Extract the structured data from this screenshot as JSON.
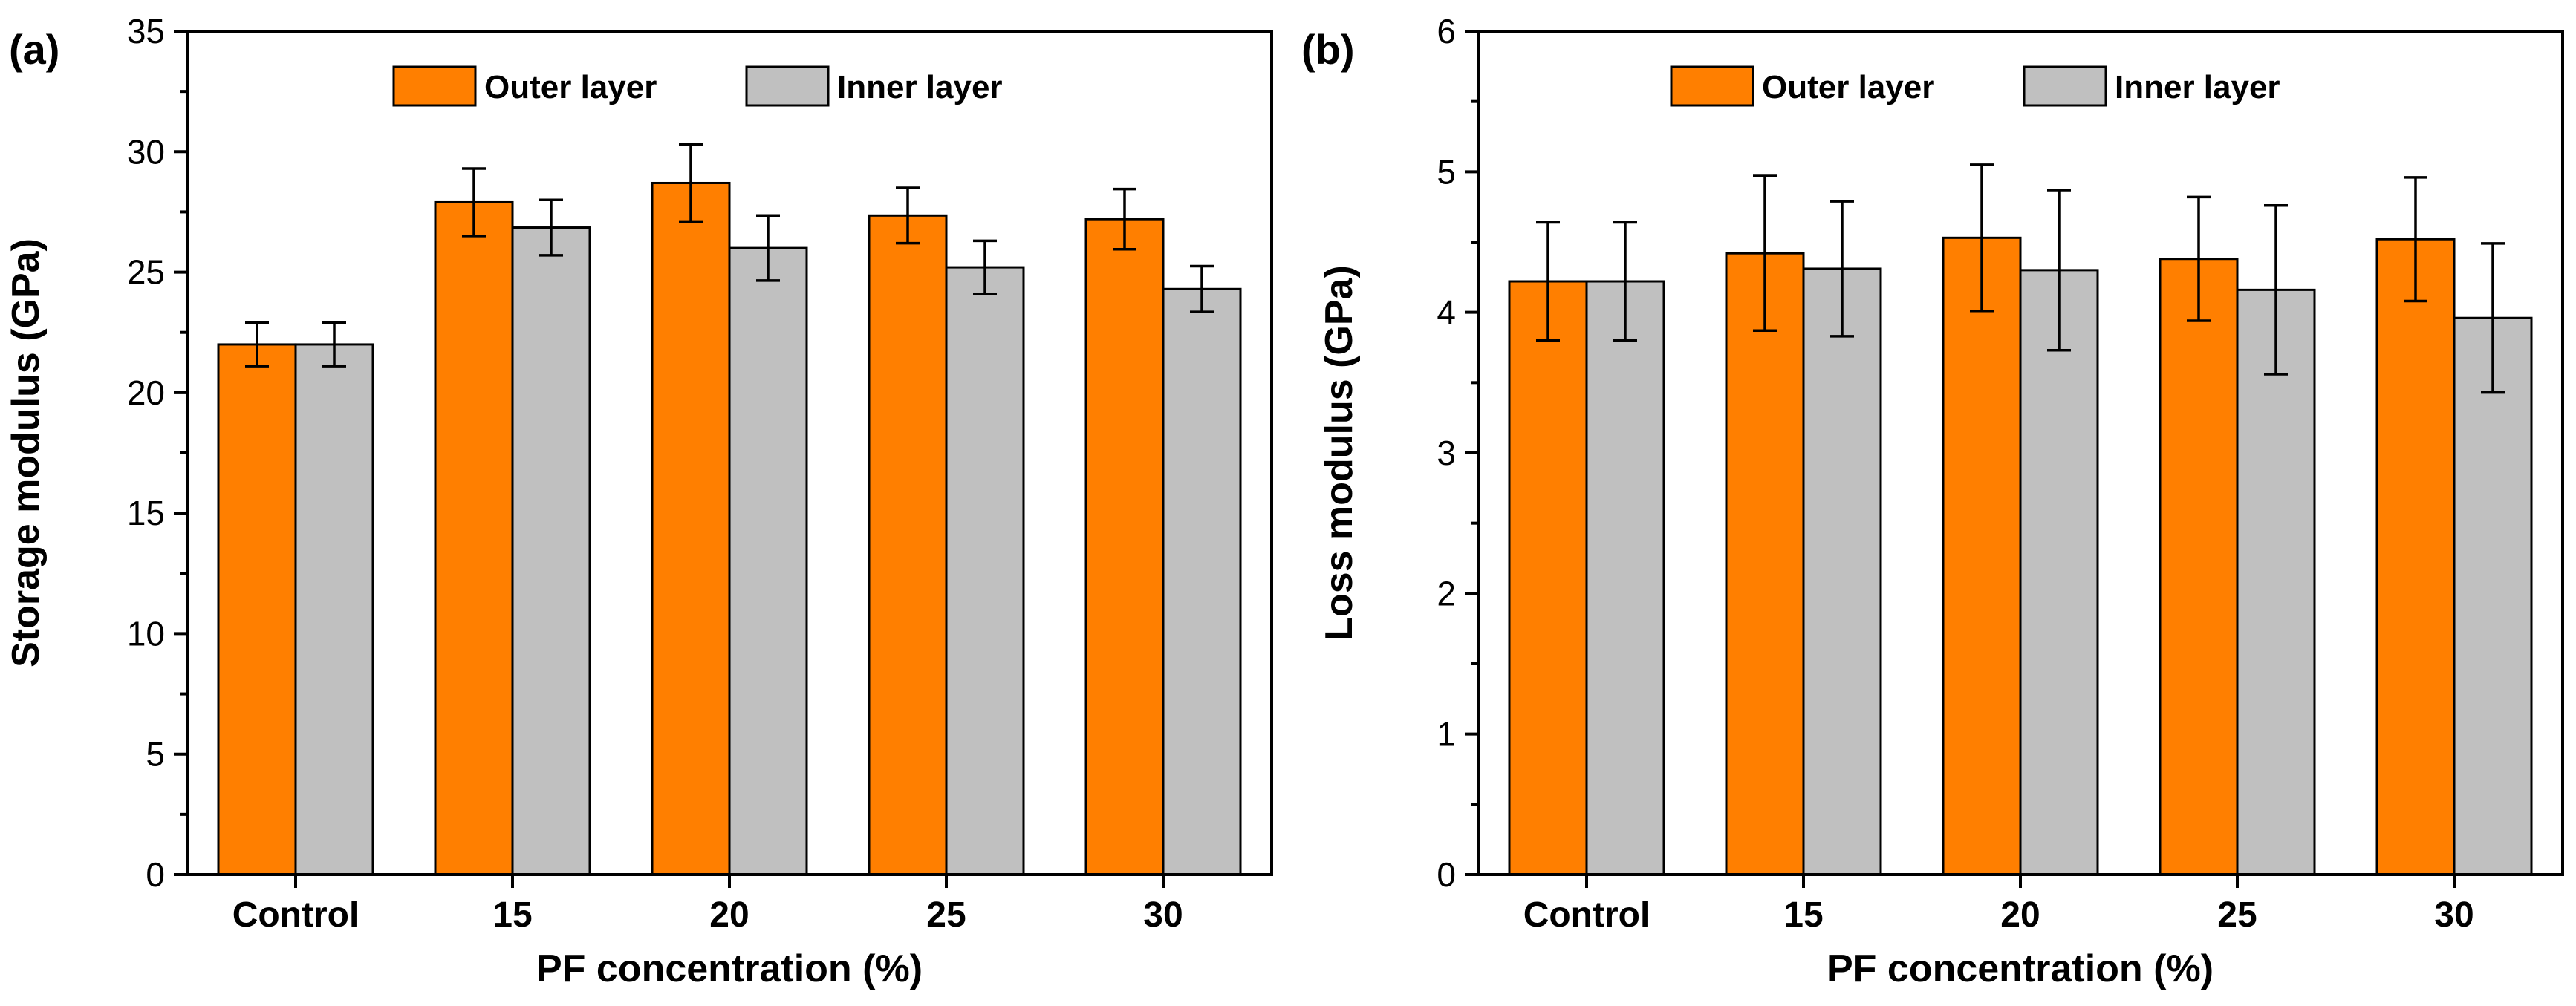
{
  "chart_data": [
    {
      "panel_label": "(a)",
      "type": "bar",
      "title": "",
      "xlabel": "PF concentration (%)",
      "ylabel": "Storage modulus (GPa)",
      "ylim": [
        0,
        35
      ],
      "yticks": [
        0,
        5,
        10,
        15,
        20,
        25,
        30,
        35
      ],
      "categories": [
        "Control",
        "15",
        "20",
        "25",
        "30"
      ],
      "legend_position": "top-center",
      "series": [
        {
          "name": "Outer layer",
          "color": "#FF7F00",
          "values": [
            22.0,
            27.9,
            28.7,
            27.35,
            27.2
          ],
          "errors": [
            0.9,
            1.4,
            1.6,
            1.15,
            1.25
          ]
        },
        {
          "name": "Inner layer",
          "color": "#C0C0C0",
          "values": [
            22.0,
            26.85,
            26.0,
            25.2,
            24.3
          ],
          "errors": [
            0.9,
            1.15,
            1.35,
            1.1,
            0.95
          ]
        }
      ]
    },
    {
      "panel_label": "(b)",
      "type": "bar",
      "title": "",
      "xlabel": "PF concentration (%)",
      "ylabel": "Loss modulus (GPa)",
      "ylim": [
        0,
        6
      ],
      "yticks": [
        0,
        1,
        2,
        3,
        4,
        5,
        6
      ],
      "categories": [
        "Control",
        "15",
        "20",
        "25",
        "30"
      ],
      "legend_position": "top-center",
      "series": [
        {
          "name": "Outer layer",
          "color": "#FF7F00",
          "values": [
            4.22,
            4.42,
            4.53,
            4.38,
            4.52
          ],
          "errors": [
            0.42,
            0.55,
            0.52,
            0.44,
            0.44
          ]
        },
        {
          "name": "Inner layer",
          "color": "#C0C0C0",
          "values": [
            4.22,
            4.31,
            4.3,
            4.16,
            3.96
          ],
          "errors": [
            0.42,
            0.48,
            0.57,
            0.6,
            0.53
          ]
        }
      ]
    }
  ]
}
